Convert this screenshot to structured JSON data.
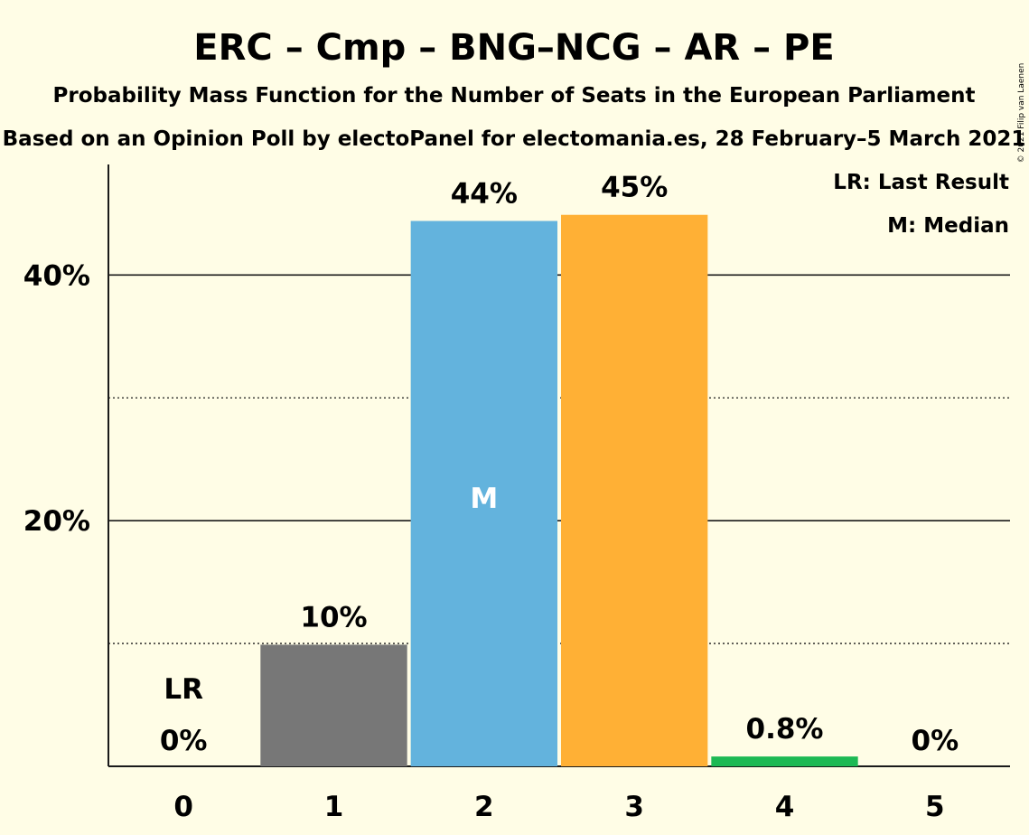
{
  "chart_data": {
    "type": "bar",
    "title": "ERC – Cmp – BNG–NCG – AR – PE",
    "subtitle": "Probability Mass Function for the Number of Seats in the European Parliament",
    "source": "Based on an Opinion Poll by electoPanel for electomania.es, 28 February–5 March 2021",
    "credit": "© 2021 Filip van Laenen",
    "categories": [
      "0",
      "1",
      "2",
      "3",
      "4",
      "5"
    ],
    "values": [
      0,
      9.9,
      44.4,
      44.9,
      0.8,
      0
    ],
    "value_labels": [
      "0%",
      "10%",
      "44%",
      "45%",
      "0.8%",
      "0%"
    ],
    "bar_colors": [
      "#777777",
      "#777777",
      "#63b3dd",
      "#ffb035",
      "#1db954",
      "#777777"
    ],
    "ylim": [
      0,
      49
    ],
    "yticks_major": [
      20,
      40
    ],
    "ytick_labels": [
      "20%",
      "40%"
    ],
    "yticks_minor": [
      10,
      30
    ],
    "last_result_index": 0,
    "last_result_label": "LR",
    "median_index": 2,
    "median_label": "M",
    "legend": {
      "last_result": "LR: Last Result",
      "median": "M: Median",
      "placement": "top-right"
    }
  }
}
